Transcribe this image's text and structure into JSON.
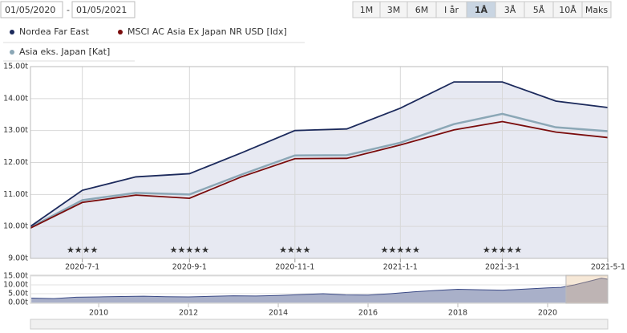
{
  "controls": {
    "from": "01/05/2020",
    "separator": "-",
    "to": "01/05/2021",
    "buttons": [
      "1M",
      "3M",
      "6M",
      "I år",
      "1Å",
      "3Å",
      "5Å",
      "10Å",
      "Maks"
    ],
    "selected": 4
  },
  "chart_data": [
    {
      "type": "line",
      "x": [
        "2020-6-1",
        "2020-7-1",
        "2020-8-1",
        "2020-9-1",
        "2020-10-1",
        "2020-11-1",
        "2020-12-1",
        "2021-1-1",
        "2021-2-1",
        "2021-3-1",
        "2021-4-1",
        "2021-5-1"
      ],
      "series": [
        {
          "name": "Nordea Far East",
          "color": "#1c2a5c",
          "values": [
            10.0,
            11.13,
            11.55,
            11.65,
            12.3,
            13.0,
            13.05,
            13.7,
            14.52,
            14.52,
            13.92,
            13.72
          ]
        },
        {
          "name": "MSCI AC Asia Ex Japan NR USD [Idx]",
          "color": "#7a0c0c",
          "values": [
            9.95,
            10.75,
            10.98,
            10.88,
            11.55,
            12.12,
            12.13,
            12.55,
            13.02,
            13.28,
            12.95,
            12.78
          ]
        },
        {
          "name": "Asia eks. Japan [Kat]",
          "color": "#8ba7b6",
          "values": [
            9.97,
            10.82,
            11.05,
            11.0,
            11.62,
            12.22,
            12.23,
            12.62,
            13.2,
            13.52,
            13.1,
            12.98
          ]
        }
      ],
      "area": true,
      "area_color": "#e7e9f2",
      "xlim": [
        "2020-6-1",
        "2021-5-1"
      ],
      "xticks": [
        "2020-7-1",
        "2020-9-1",
        "2020-11-1",
        "2021-1-1",
        "2021-3-1",
        "2021-5-1"
      ],
      "annotations": [
        "★★★★",
        "★★★★★",
        "★★★★",
        "★★★★★",
        "★★★★★"
      ],
      "ylim": [
        9,
        15
      ],
      "yticks": [
        {
          "value": 9,
          "label": "9.00t"
        },
        {
          "value": 10,
          "label": "10.00t"
        },
        {
          "value": 11,
          "label": "11.00t"
        },
        {
          "value": 12,
          "label": "12.00t"
        },
        {
          "value": 13,
          "label": "13.00t"
        },
        {
          "value": 14,
          "label": "14.00t"
        },
        {
          "value": 15,
          "label": "15.00t"
        }
      ],
      "grid": true
    },
    {
      "type": "area",
      "x": [
        2008.5,
        2009,
        2009.5,
        2010,
        2010.5,
        2011,
        2011.5,
        2012,
        2012.5,
        2013,
        2013.5,
        2014,
        2014.5,
        2015,
        2015.5,
        2016,
        2016.5,
        2017,
        2017.5,
        2018,
        2018.5,
        2019,
        2019.5,
        2020,
        2020.3,
        2020.6,
        2021,
        2021.2,
        2021.34
      ],
      "values": [
        2.5,
        2.2,
        3.0,
        3.2,
        3.4,
        3.6,
        3.3,
        3.2,
        3.5,
        3.8,
        3.7,
        4.0,
        4.5,
        5.0,
        4.3,
        4.2,
        5.0,
        6.0,
        6.8,
        7.5,
        7.2,
        7.0,
        7.6,
        8.3,
        8.6,
        10.0,
        12.5,
        13.8,
        13.2
      ],
      "color": "#3b4a86",
      "fill": "#a9b0c9",
      "xlim": [
        2008.48,
        2021.34
      ],
      "xticks": [
        2010,
        2012,
        2014,
        2016,
        2018,
        2020
      ],
      "selection": [
        2020.41,
        2021.34
      ],
      "ylim": [
        0,
        15
      ],
      "yticks": [
        {
          "value": 0,
          "label": "0.00t"
        },
        {
          "value": 5,
          "label": "5.00t"
        },
        {
          "value": 10,
          "label": "10.00t"
        },
        {
          "value": 15,
          "label": "15.00t"
        }
      ]
    }
  ]
}
